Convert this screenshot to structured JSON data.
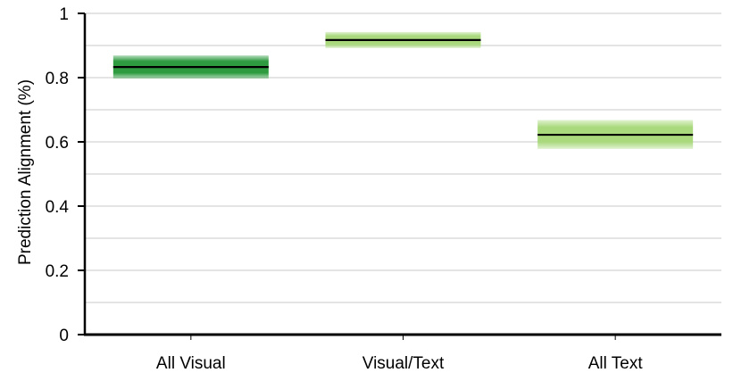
{
  "chart_data": {
    "type": "bar",
    "title": "",
    "xlabel": "",
    "ylabel": "Prediction Alignment (%)",
    "categories": [
      "All Visual",
      "Visual/Text",
      "All Text"
    ],
    "values": [
      0.833,
      0.917,
      0.622
    ],
    "intervals": [
      {
        "low": 0.797,
        "high": 0.869
      },
      {
        "low": 0.892,
        "high": 0.942
      },
      {
        "low": 0.578,
        "high": 0.668
      }
    ],
    "interval_colors": [
      "#2e9b40",
      "#a9d97c",
      "#a9d97c"
    ],
    "mean_line_color": "#000000",
    "ylim": [
      0,
      1
    ],
    "yticks": [
      "0",
      "0.2",
      "0.4",
      "0.6",
      "0.8",
      "1"
    ],
    "grid": true,
    "grid_color": "#c8c8c8",
    "legend": "none"
  }
}
